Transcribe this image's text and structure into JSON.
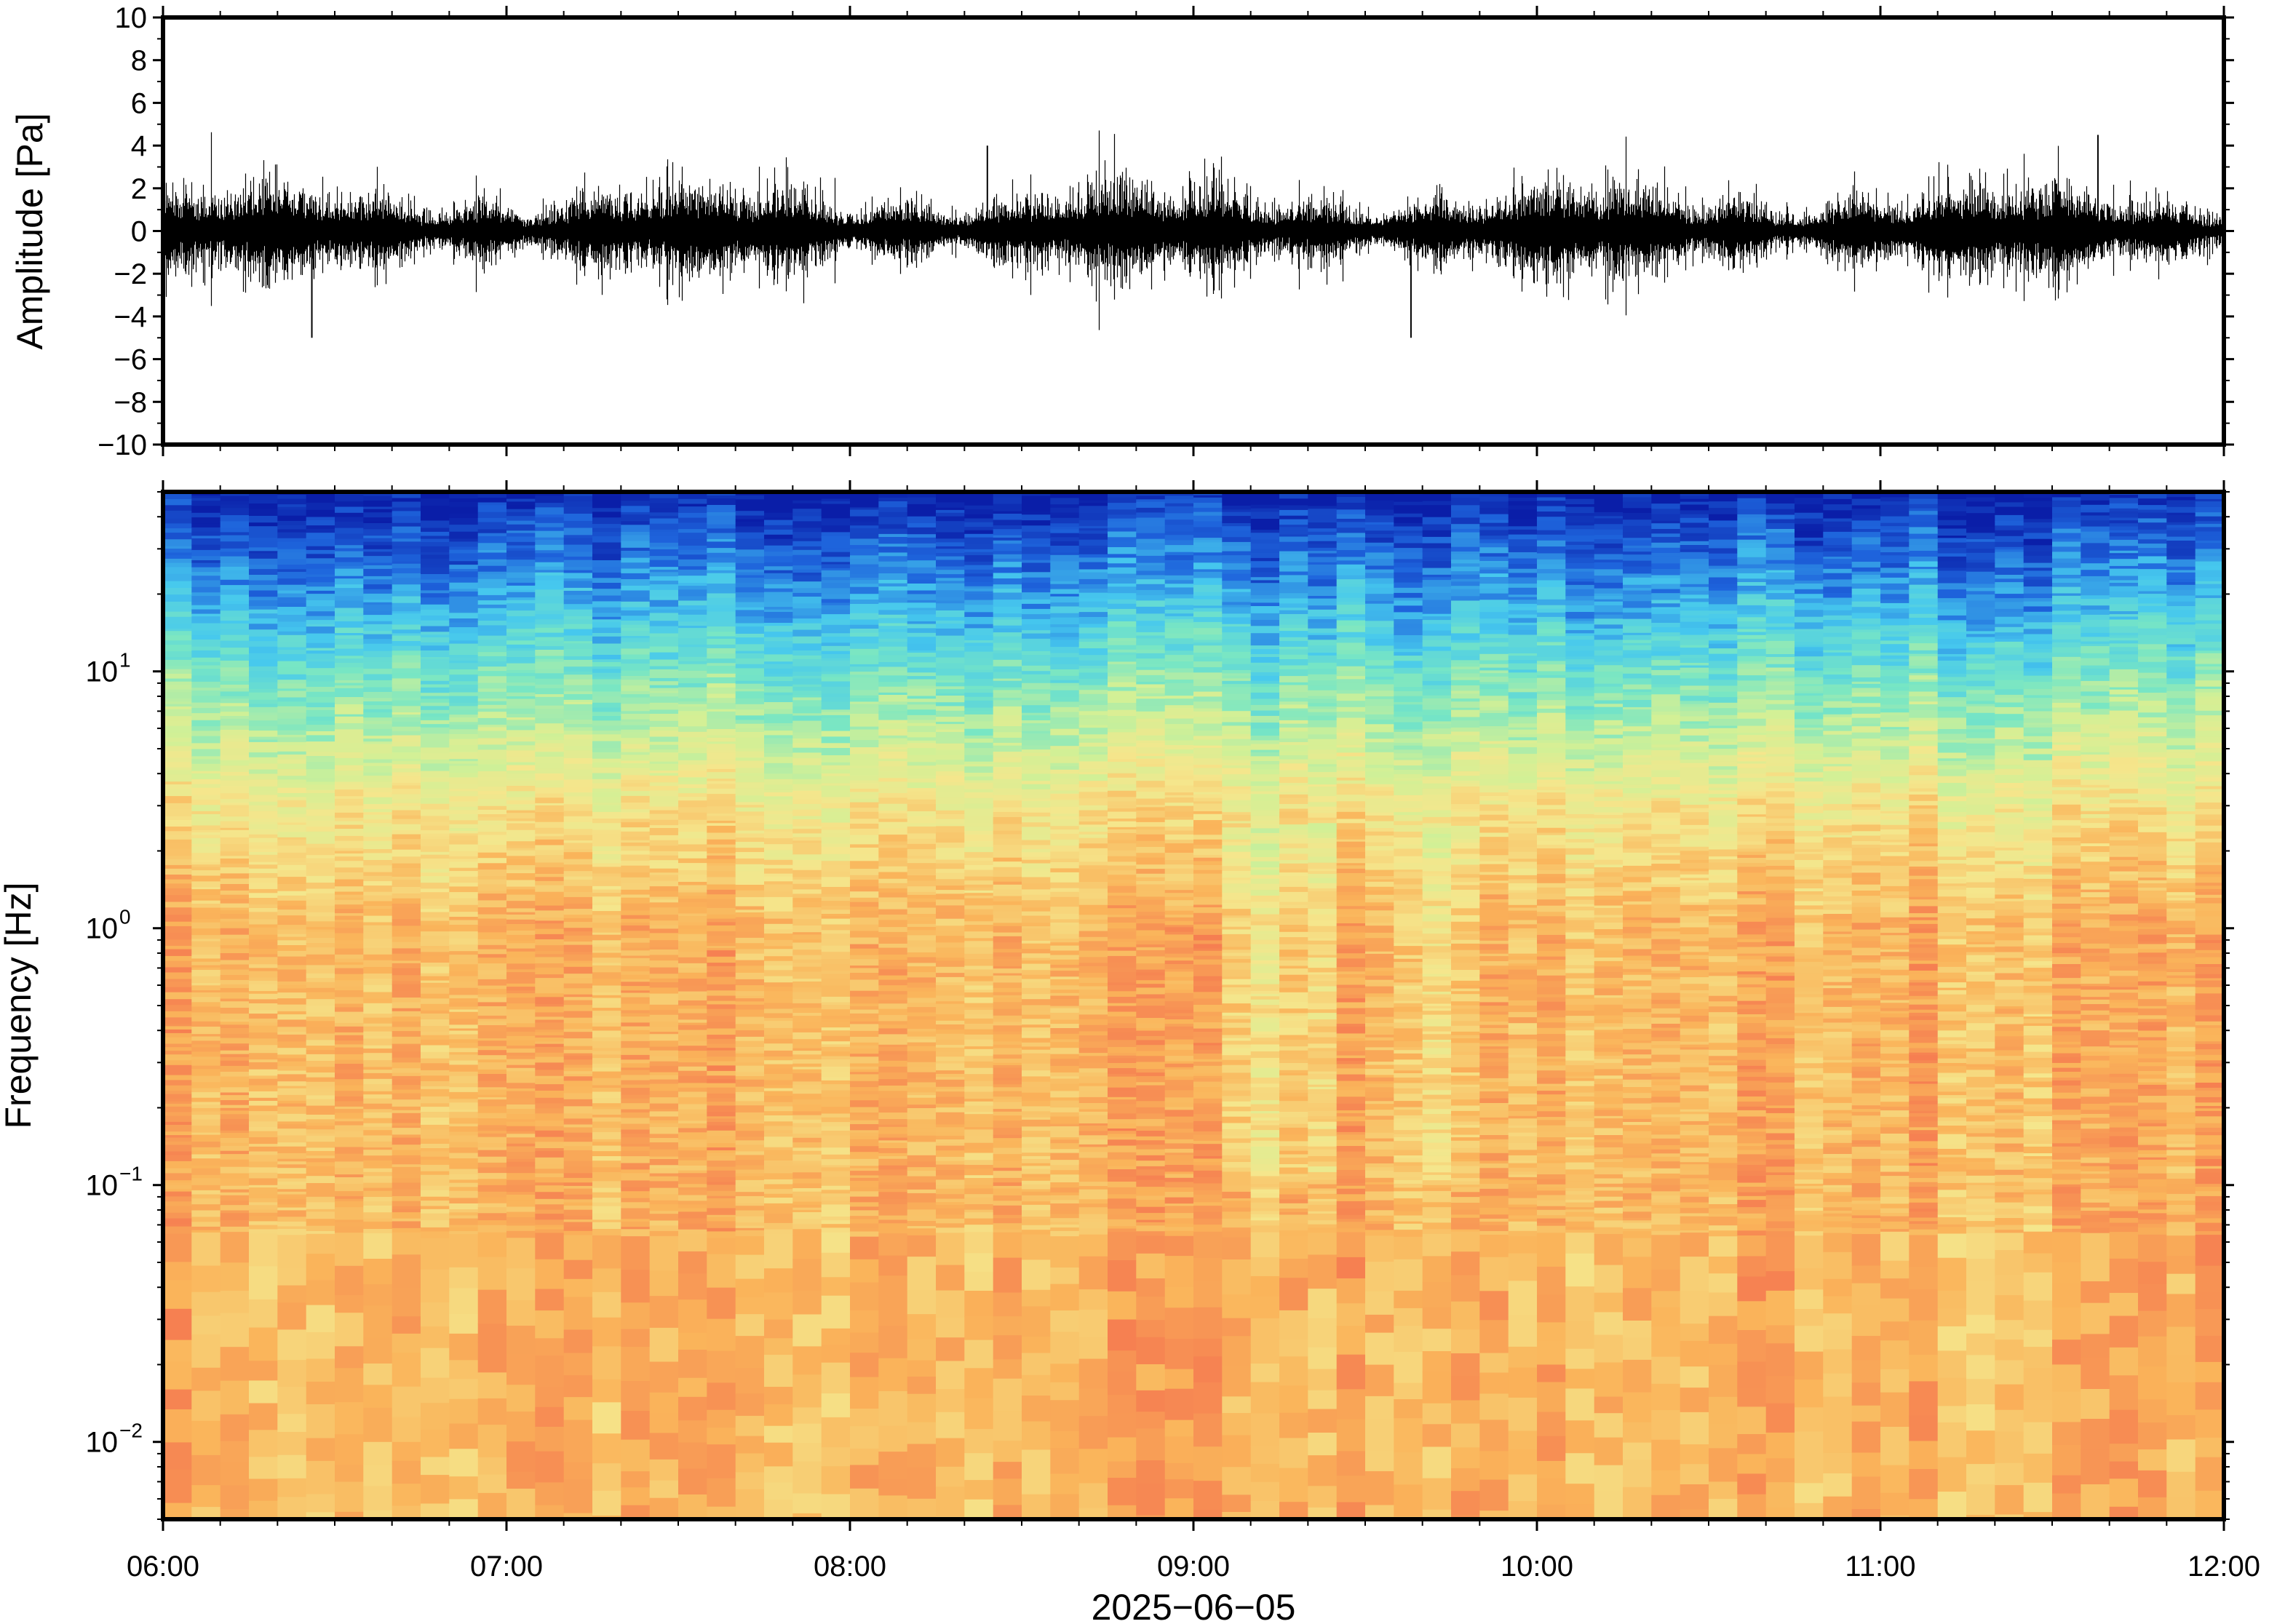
{
  "chart_data": [
    {
      "type": "line",
      "panel": "waveform",
      "title": "",
      "ylabel": "Amplitude [Pa]",
      "ylim": [
        -10,
        10
      ],
      "yticks": [
        10,
        8,
        6,
        4,
        2,
        0,
        -2,
        -4,
        -6,
        -8,
        -10
      ],
      "ytick_labels": [
        "10",
        "8",
        "6",
        "4",
        "2",
        "0",
        "−2",
        "−4",
        "−6",
        "−8",
        "−10"
      ],
      "series": [
        {
          "color": "#000000",
          "typical_envelope_pa": 2,
          "notable_peaks": [
            {
              "x": "06:26",
              "y": -5.0
            },
            {
              "x": "08:24",
              "y": 4.0
            },
            {
              "x": "09:38",
              "y": -5.0
            },
            {
              "x": "11:38",
              "y": 4.5
            }
          ]
        }
      ]
    },
    {
      "type": "heatmap",
      "panel": "spectrogram",
      "title": "",
      "ylabel": "Frequency [Hz]",
      "yscale": "log",
      "ylim": [
        0.005,
        50
      ],
      "yticks": [
        0.01,
        0.1,
        1,
        10
      ],
      "ytick_labels": [
        {
          "base": "10",
          "exp": "−2"
        },
        {
          "base": "10",
          "exp": "−1"
        },
        {
          "base": "10",
          "exp": "0"
        },
        {
          "base": "10",
          "exp": "1"
        }
      ],
      "colormap": [
        "#0a1ea8",
        "#1e64dc",
        "#46c8ee",
        "#78e6c4",
        "#d2f096",
        "#f5e68c",
        "#fab45a",
        "#f57850",
        "#f05a5a",
        "#fa8c8c"
      ],
      "level_profile": {
        "0.005": 0.35,
        "0.008": 0.4,
        "0.012": 0.48,
        "0.02": 0.66,
        "0.04": 0.85,
        "0.1": 0.93,
        "0.3": 0.84,
        "1": 0.66,
        "3": 0.55,
        "10": 0.32,
        "20": 0.18,
        "35": 0.08,
        "50": 0.0
      }
    }
  ],
  "shared_x": {
    "xlabel": "2025−06−05",
    "xlim": [
      "06:00",
      "12:00"
    ],
    "xticks": [
      "06:00",
      "07:00",
      "08:00",
      "09:00",
      "10:00",
      "11:00",
      "12:00"
    ]
  },
  "colors": {
    "frame": "#000000",
    "trace": "#000000",
    "background": "#ffffff"
  }
}
